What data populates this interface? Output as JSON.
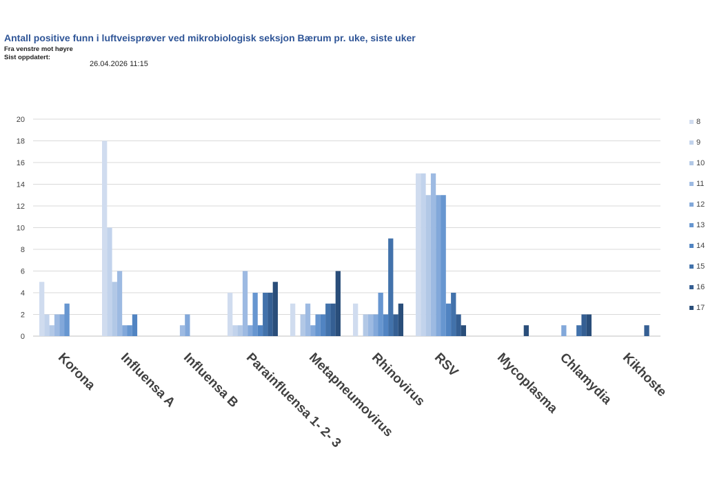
{
  "header": {
    "title": "Antall positive funn i luftveisprøver ved mikrobiologisk seksjon Bærum pr. uke, siste uker",
    "subtitle": "Fra venstre mot høyre",
    "updated_label": "Sist oppdatert:",
    "updated_value": "26.04.2026 11:15"
  },
  "chart_data": {
    "type": "bar",
    "title": "Antall positive funn i luftveisprøver ved mikrobiologisk seksjon Bærum pr. uke, siste uker",
    "xlabel": "",
    "ylabel": "",
    "ylim": [
      0,
      20
    ],
    "yticks": [
      0,
      2,
      4,
      6,
      8,
      10,
      12,
      14,
      16,
      18,
      20
    ],
    "grid": true,
    "legend_position": "right",
    "categories": [
      "Korona",
      "Influensa A",
      "Influensa B",
      "Parainfluensa 1- 2- 3",
      "Metapneumovirus",
      "Rhinovirus",
      "RSV",
      "Mycoplasma",
      "Chlamydia",
      "Kikhoste"
    ],
    "series": [
      {
        "name": "8",
        "color": "#d0dcef",
        "values": [
          5,
          18,
          0,
          4,
          3,
          3,
          15,
          0,
          0,
          0
        ]
      },
      {
        "name": "9",
        "color": "#c2d3ec",
        "values": [
          2,
          10,
          0,
          1,
          0,
          0,
          15,
          0,
          0,
          0
        ]
      },
      {
        "name": "10",
        "color": "#b2c8e6",
        "values": [
          1,
          5,
          0,
          1,
          2,
          2,
          13,
          0,
          0,
          0
        ]
      },
      {
        "name": "11",
        "color": "#9dbae2",
        "values": [
          2,
          6,
          1,
          6,
          3,
          2,
          15,
          0,
          0,
          0
        ]
      },
      {
        "name": "12",
        "color": "#82a8da",
        "values": [
          2,
          1,
          2,
          1,
          1,
          2,
          13,
          0,
          1,
          0
        ]
      },
      {
        "name": "13",
        "color": "#6796d0",
        "values": [
          3,
          1,
          0,
          4,
          2,
          4,
          13,
          0,
          0,
          0
        ]
      },
      {
        "name": "14",
        "color": "#5184c2",
        "values": [
          0,
          2,
          0,
          1,
          2,
          2,
          3,
          0,
          0,
          0
        ]
      },
      {
        "name": "15",
        "color": "#4272ab",
        "values": [
          0,
          0,
          0,
          4,
          3,
          9,
          4,
          0,
          1,
          0
        ]
      },
      {
        "name": "16",
        "color": "#355f93",
        "values": [
          0,
          0,
          0,
          4,
          3,
          2,
          2,
          0,
          2,
          1
        ]
      },
      {
        "name": "17",
        "color": "#2a4e7a",
        "values": [
          0,
          0,
          0,
          5,
          6,
          3,
          1,
          1,
          2,
          0
        ]
      }
    ]
  }
}
